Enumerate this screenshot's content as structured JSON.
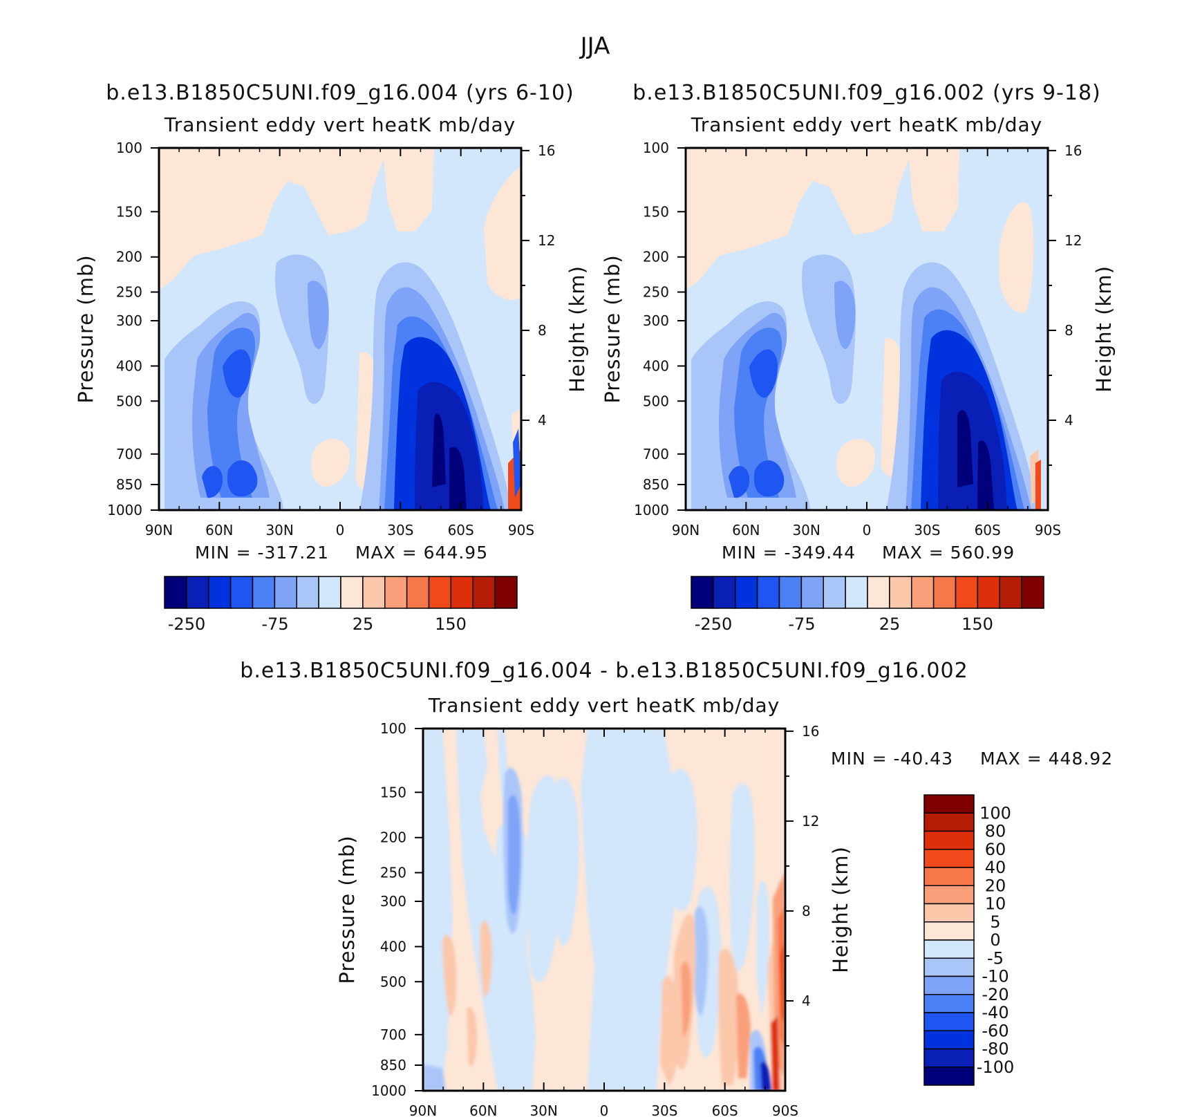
{
  "figure_title": "JJA",
  "colors": {
    "diverging": [
      "#00007a",
      "#0a1fb5",
      "#0033dd",
      "#1f55f0",
      "#4c80f5",
      "#7ea3f7",
      "#aac6f9",
      "#d2e6fc",
      "#fde6d6",
      "#fbc8ac",
      "#f9a07a",
      "#f6774a",
      "#f04a1c",
      "#dd2f0a",
      "#b51c05",
      "#800000"
    ],
    "field_pos": "#fde6d6",
    "field_neg": "#d2e6fc",
    "axis": "#000000"
  },
  "chart_data": [
    {
      "type": "heatmap",
      "title": "b.e13.B1850C5UNI.f09_g16.004 (yrs 6-10)",
      "subtitle": "Transient eddy vert heatK mb/day",
      "xlabel": "",
      "ylabel": "Pressure (mb)",
      "ylabel_right": "Height (km)",
      "x_ticks": [
        "90N",
        "60N",
        "30N",
        "0",
        "30S",
        "60S",
        "90S"
      ],
      "y_ticks": [
        100,
        150,
        200,
        250,
        300,
        400,
        500,
        700,
        850,
        1000
      ],
      "y_right_ticks": [
        16,
        12,
        8,
        4
      ],
      "y_scale": "log",
      "min_label": "MIN = -317.21",
      "max_label": "MAX = 644.95",
      "min": -317.21,
      "max": 644.95,
      "colorbar_labels": [
        "-250",
        "-75",
        "25",
        "150"
      ]
    },
    {
      "type": "heatmap",
      "title": "b.e13.B1850C5UNI.f09_g16.002 (yrs 9-18)",
      "subtitle": "Transient eddy vert heatK mb/day",
      "xlabel": "",
      "ylabel": "Pressure (mb)",
      "ylabel_right": "Height (km)",
      "x_ticks": [
        "90N",
        "60N",
        "30N",
        "0",
        "30S",
        "60S",
        "90S"
      ],
      "y_ticks": [
        100,
        150,
        200,
        250,
        300,
        400,
        500,
        700,
        850,
        1000
      ],
      "y_right_ticks": [
        16,
        12,
        8,
        4
      ],
      "y_scale": "log",
      "min_label": "MIN = -349.44",
      "max_label": "MAX = 560.99",
      "min": -349.44,
      "max": 560.99,
      "colorbar_labels": [
        "-250",
        "-75",
        "25",
        "150"
      ]
    },
    {
      "type": "heatmap",
      "title": "b.e13.B1850C5UNI.f09_g16.004 - b.e13.B1850C5UNI.f09_g16.002",
      "subtitle": "Transient eddy vert heatK mb/day",
      "xlabel": "",
      "ylabel": "Pressure (mb)",
      "ylabel_right": "Height (km)",
      "x_ticks": [
        "90N",
        "60N",
        "30N",
        "0",
        "30S",
        "60S",
        "90S"
      ],
      "y_ticks": [
        100,
        150,
        200,
        250,
        300,
        400,
        500,
        700,
        850,
        1000
      ],
      "y_right_ticks": [
        16,
        12,
        8,
        4
      ],
      "y_scale": "log",
      "min_label": "MIN = -40.43",
      "max_label": "MAX = 448.92",
      "min": -40.43,
      "max": 448.92,
      "colorbar_labels": [
        "100",
        "80",
        "60",
        "40",
        "20",
        "10",
        "5",
        "0",
        "-5",
        "-10",
        "-20",
        "-40",
        "-60",
        "-80",
        "-100"
      ]
    }
  ]
}
